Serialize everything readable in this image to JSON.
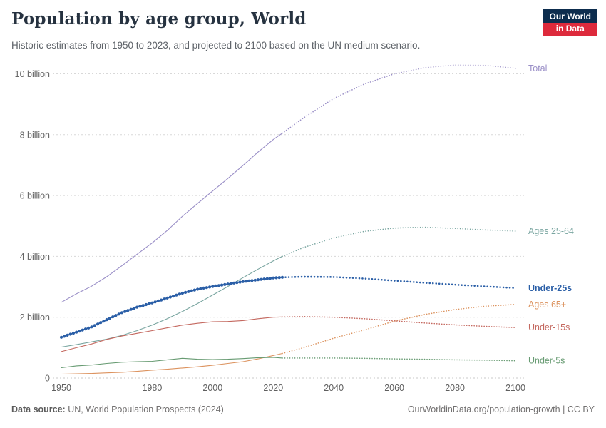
{
  "header": {
    "title": "Population by age group, World",
    "subtitle": "Historic estimates from 1950 to 2023, and projected to 2100 based on the UN medium scenario.",
    "logo": {
      "line1": "Our World",
      "line2": "in Data",
      "bg": "#0d2d4e",
      "accent": "#dd2a3c"
    }
  },
  "footer": {
    "datasource_label": "Data source:",
    "datasource_value": " UN, World Population Prospects (2024)",
    "link": "OurWorldinData.org/population-growth | CC BY"
  },
  "colors": {
    "background": "#ffffff",
    "grid": "#d8d8d8",
    "axis_text": "#666666",
    "title": "#263240",
    "subtitle": "#5e6369"
  },
  "chart_data": {
    "type": "line",
    "title": "Population by age group, World",
    "xlabel": "",
    "ylabel": "",
    "grid": "dashed-horizontal",
    "legend_position": "right-edge-labels",
    "units": "billion people",
    "xlim": [
      1950,
      2100
    ],
    "ylim": [
      0,
      10.5
    ],
    "projection_start_year": 2023,
    "x_ticks": [
      1950,
      1980,
      2000,
      2020,
      2040,
      2060,
      2080,
      2100
    ],
    "y_ticks": [
      0,
      2,
      4,
      6,
      8,
      10
    ],
    "y_tick_labels": [
      "0",
      "2 billion",
      "4 billion",
      "6 billion",
      "8 billion",
      "10 billion"
    ],
    "x": [
      1950,
      1955,
      1960,
      1965,
      1970,
      1975,
      1980,
      1985,
      1990,
      1995,
      2000,
      2005,
      2010,
      2015,
      2020,
      2023,
      2030,
      2040,
      2050,
      2060,
      2070,
      2080,
      2090,
      2100
    ],
    "series": [
      {
        "id": "total",
        "name": "Total",
        "color": "#9a8fc7",
        "highlight": false,
        "values": [
          2.49,
          2.77,
          3.02,
          3.33,
          3.69,
          4.07,
          4.44,
          4.85,
          5.32,
          5.74,
          6.15,
          6.56,
          6.99,
          7.43,
          7.84,
          8.05,
          8.55,
          9.19,
          9.66,
          10.0,
          10.2,
          10.29,
          10.28,
          10.18
        ]
      },
      {
        "id": "ages-25-64",
        "name": "Ages 25-64",
        "color": "#79a5a0",
        "highlight": false,
        "values": [
          1.02,
          1.1,
          1.19,
          1.28,
          1.4,
          1.56,
          1.74,
          1.95,
          2.19,
          2.45,
          2.73,
          3.01,
          3.3,
          3.58,
          3.85,
          4.0,
          4.29,
          4.61,
          4.82,
          4.93,
          4.96,
          4.92,
          4.87,
          4.83
        ]
      },
      {
        "id": "under-25s",
        "name": "Under-25s",
        "color": "#2b5fa7",
        "highlight": true,
        "values": [
          1.34,
          1.51,
          1.68,
          1.92,
          2.15,
          2.33,
          2.47,
          2.63,
          2.79,
          2.92,
          3.01,
          3.09,
          3.17,
          3.23,
          3.29,
          3.31,
          3.33,
          3.32,
          3.27,
          3.2,
          3.13,
          3.07,
          3.01,
          2.96
        ]
      },
      {
        "id": "ages-65plus",
        "name": "Ages 65+",
        "color": "#dc935f",
        "highlight": false,
        "values": [
          0.13,
          0.14,
          0.15,
          0.17,
          0.19,
          0.22,
          0.26,
          0.29,
          0.33,
          0.37,
          0.42,
          0.48,
          0.54,
          0.63,
          0.74,
          0.81,
          1.0,
          1.31,
          1.58,
          1.87,
          2.09,
          2.25,
          2.36,
          2.42
        ]
      },
      {
        "id": "under-15s",
        "name": "Under-15s",
        "color": "#c4685f",
        "highlight": false,
        "values": [
          0.87,
          1.0,
          1.12,
          1.27,
          1.38,
          1.47,
          1.56,
          1.65,
          1.74,
          1.8,
          1.85,
          1.86,
          1.89,
          1.95,
          2.0,
          2.01,
          2.02,
          2.0,
          1.95,
          1.88,
          1.81,
          1.75,
          1.7,
          1.66
        ]
      },
      {
        "id": "under-5s",
        "name": "Under-5s",
        "color": "#679b72",
        "highlight": false,
        "values": [
          0.34,
          0.4,
          0.43,
          0.48,
          0.52,
          0.54,
          0.55,
          0.6,
          0.65,
          0.62,
          0.61,
          0.62,
          0.64,
          0.67,
          0.68,
          0.66,
          0.66,
          0.66,
          0.65,
          0.63,
          0.62,
          0.6,
          0.59,
          0.57
        ]
      }
    ]
  }
}
